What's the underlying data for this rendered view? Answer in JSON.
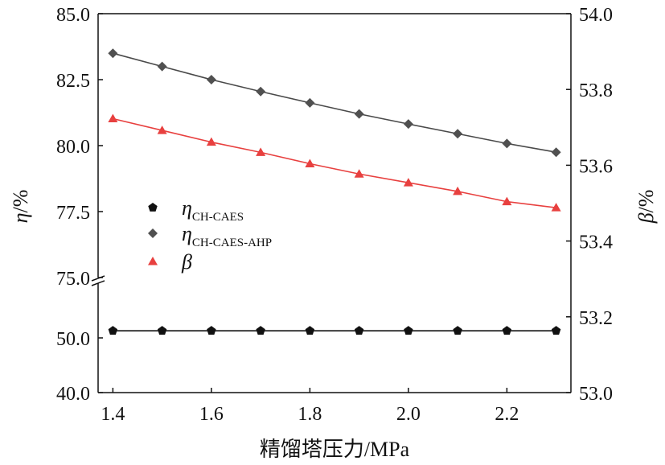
{
  "chart_data": {
    "type": "line",
    "x": [
      1.4,
      1.5,
      1.6,
      1.7,
      1.8,
      1.9,
      2.0,
      2.1,
      2.2,
      2.3
    ],
    "xlabel": "精馏塔压力/MPa",
    "xlim": [
      1.37,
      2.33
    ],
    "xticks": [
      1.4,
      1.6,
      1.8,
      2.0,
      2.2
    ],
    "xtick_labels": [
      "1.4",
      "1.6",
      "1.8",
      "2.0",
      "2.2"
    ],
    "left_axis": {
      "label": "η/%",
      "label_symbol": "η",
      "label_unit": "/%",
      "broken": true,
      "upper_range": [
        75.0,
        85.0
      ],
      "upper_ticks": [
        75.0,
        77.5,
        80.0,
        82.5,
        85.0
      ],
      "upper_tick_labels": [
        "75.0",
        "77.5",
        "80.0",
        "82.5",
        "85.0"
      ],
      "lower_range": [
        40.0,
        60.0
      ],
      "lower_ticks": [
        40.0,
        50.0
      ],
      "lower_tick_labels": [
        "40.0",
        "50.0"
      ]
    },
    "right_axis": {
      "label": "β/%",
      "label_symbol": "β",
      "label_unit": "/%",
      "ylim": [
        53.0,
        54.0
      ],
      "ticks": [
        53.0,
        53.2,
        53.4,
        53.6,
        53.8,
        54.0
      ],
      "tick_labels": [
        "53.0",
        "53.2",
        "53.4",
        "53.6",
        "53.8",
        "54.0"
      ]
    },
    "series": [
      {
        "name": "η_CH-CAES",
        "legend_symbol": "η",
        "legend_sub": "CH-CAES",
        "axis": "left",
        "marker": "pentagon",
        "color": "#111111",
        "line_color": "#111111",
        "values": [
          51.3,
          51.3,
          51.3,
          51.3,
          51.3,
          51.3,
          51.3,
          51.3,
          51.3,
          51.3
        ]
      },
      {
        "name": "η_CH-CAES-AHP",
        "legend_symbol": "η",
        "legend_sub": "CH-CAES-AHP",
        "axis": "left",
        "marker": "diamond",
        "color": "#505050",
        "line_color": "#4a4a4a",
        "values": [
          83.5,
          83.0,
          82.5,
          82.05,
          81.62,
          81.2,
          80.82,
          80.45,
          80.08,
          79.75
        ]
      },
      {
        "name": "β",
        "legend_symbol": "β",
        "legend_sub": "",
        "axis": "right",
        "marker": "triangle",
        "color": "#e8403f",
        "line_color": "#e8403f",
        "values": [
          53.723,
          53.692,
          53.661,
          53.634,
          53.604,
          53.577,
          53.554,
          53.531,
          53.504,
          53.488
        ]
      }
    ]
  }
}
